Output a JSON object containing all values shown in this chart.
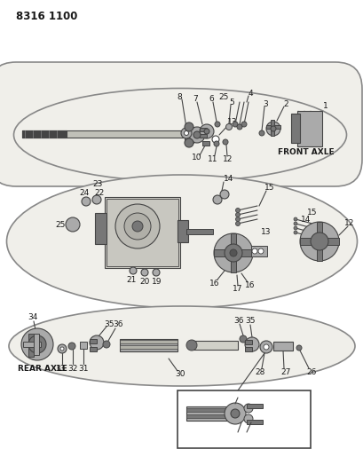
{
  "title_code": "8316 1100",
  "bg_color": "#ffffff",
  "fig_width": 4.1,
  "fig_height": 5.33,
  "dpi": 100,
  "text_color": "#1a1a1a",
  "front_axle_label": "FRONT AXLE",
  "rear_axle_label": "REAR AXLE",
  "oval_bg": "#f0efea",
  "oval_edge": "#888888",
  "part_dark": "#444444",
  "part_mid": "#777777",
  "part_light": "#aaaaaa",
  "line_color": "#444444"
}
